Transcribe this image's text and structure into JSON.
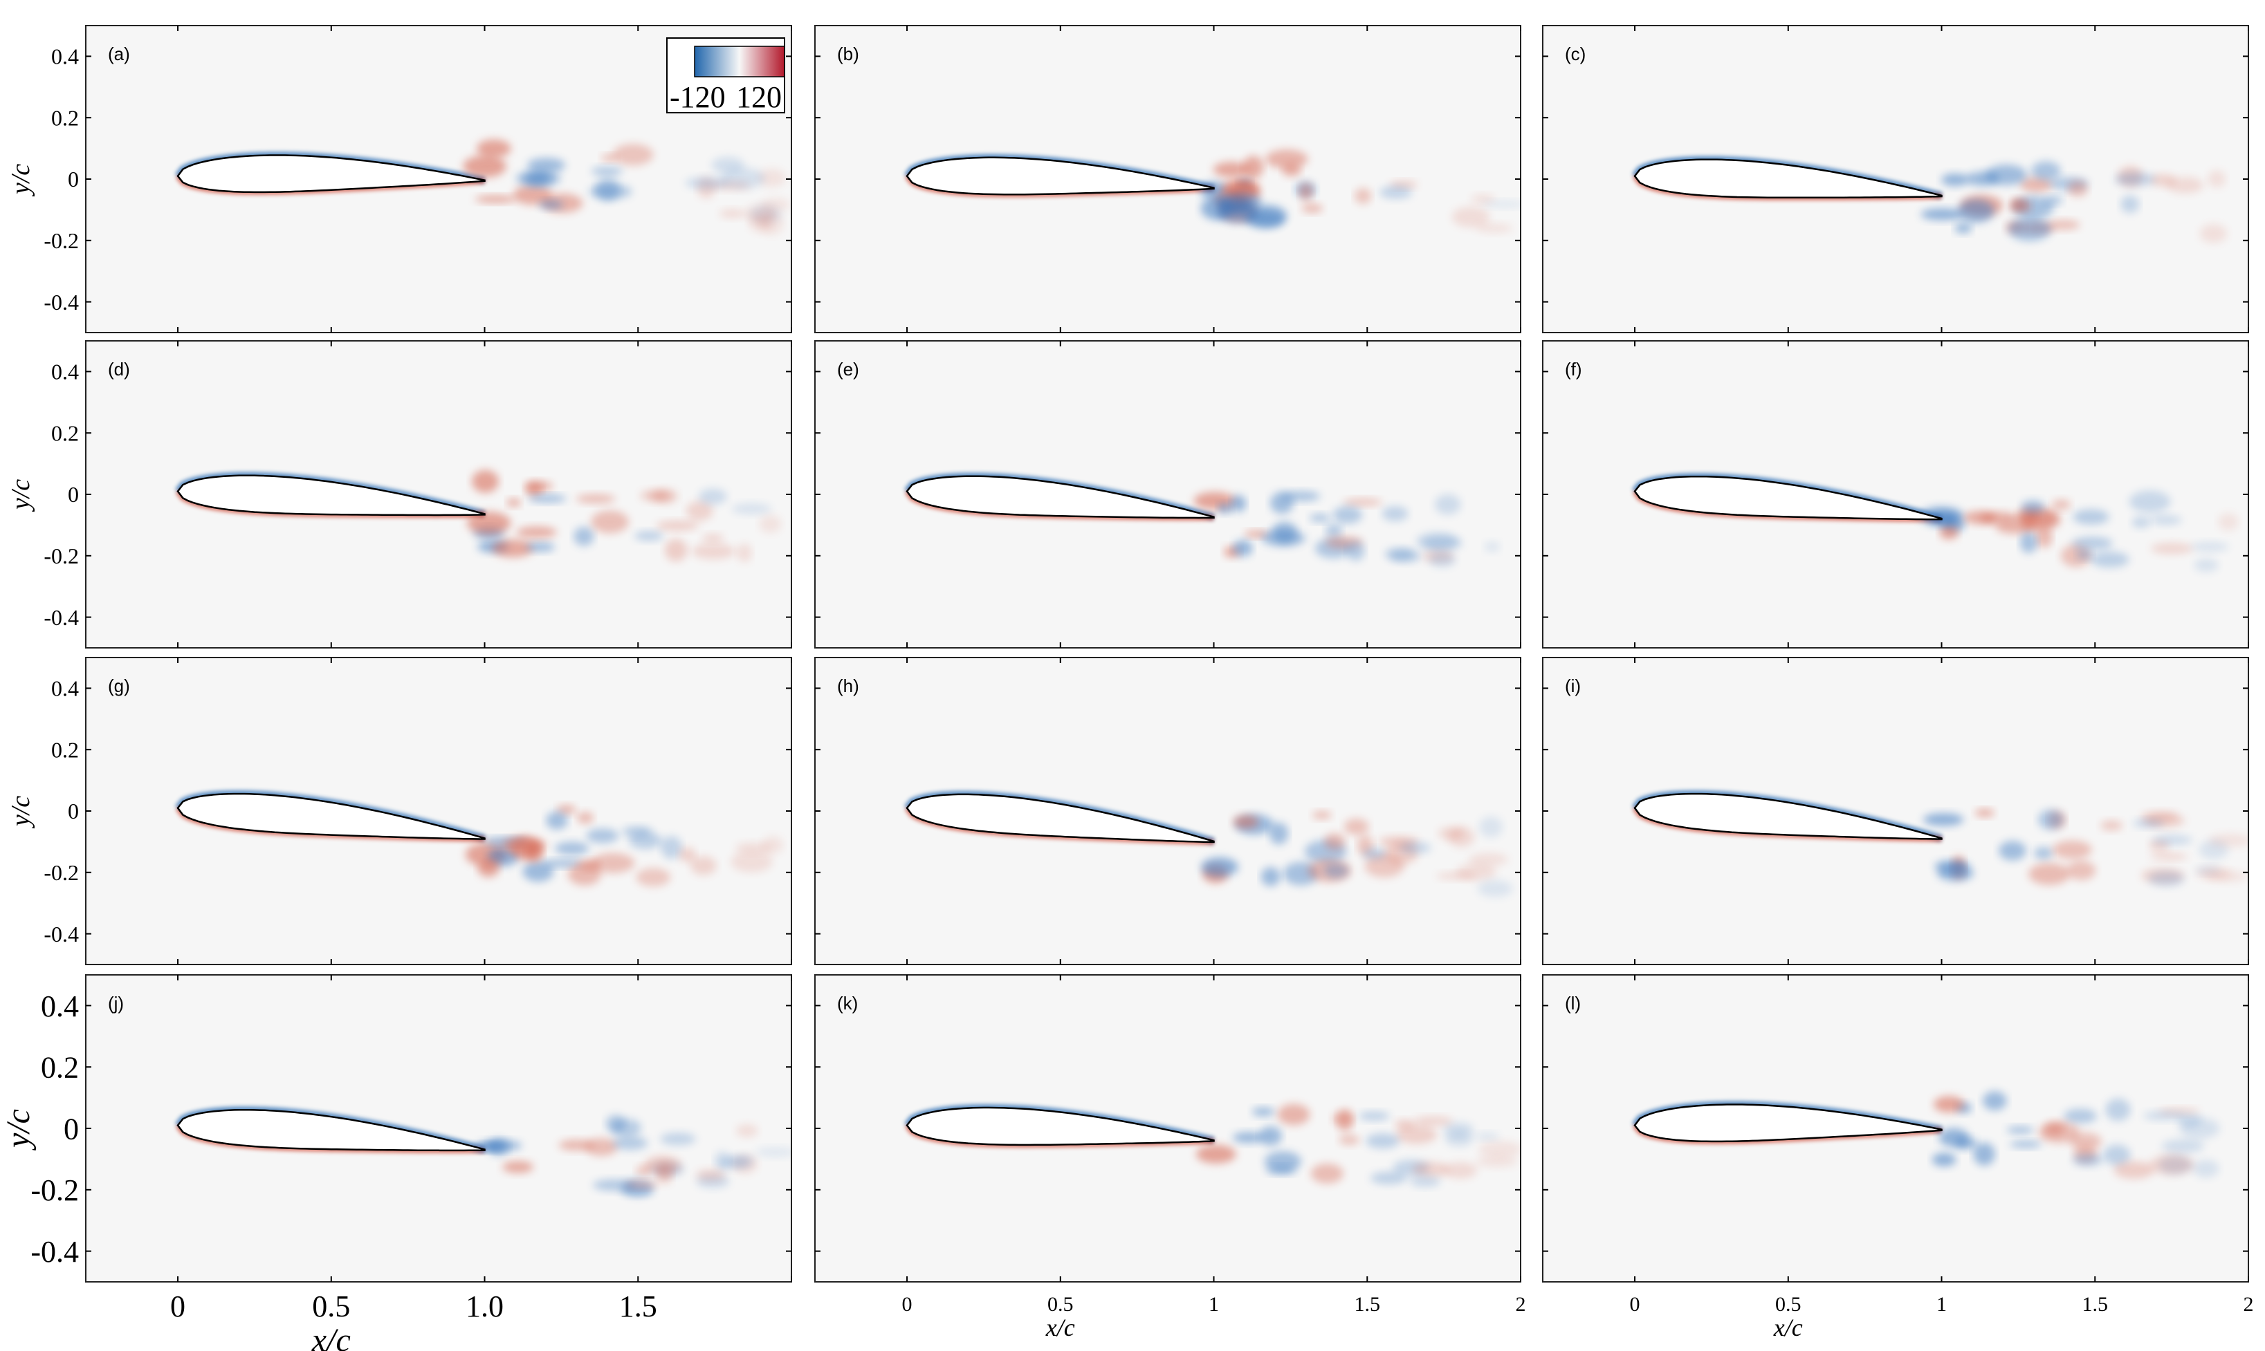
{
  "chart_data": {
    "type": "heatmap",
    "layout": "4x3 grid of panels",
    "field": "vorticity",
    "colorbar": {
      "min": -120,
      "max": 120,
      "min_label": "-120",
      "max_label": "120",
      "colors": [
        "#2166ac",
        "#f7f7f7",
        "#b2182b"
      ]
    },
    "xlim": [
      -0.3,
      2.0
    ],
    "ylim": [
      -0.5,
      0.5
    ],
    "x_ticks": [
      0,
      0.5,
      1,
      1.5,
      2
    ],
    "y_ticks": [
      0.4,
      0.2,
      0,
      -0.2,
      -0.4
    ],
    "xlabel": "x/c",
    "ylabel": "y/c",
    "background_color": "#f6f6f6",
    "panels": [
      {
        "tag": "(a)",
        "trailing_edge_y": -0.005
      },
      {
        "tag": "(b)",
        "trailing_edge_y": -0.03
      },
      {
        "tag": "(c)",
        "trailing_edge_y": -0.055
      },
      {
        "tag": "(d)",
        "trailing_edge_y": -0.065
      },
      {
        "tag": "(e)",
        "trailing_edge_y": -0.075
      },
      {
        "tag": "(f)",
        "trailing_edge_y": -0.08
      },
      {
        "tag": "(g)",
        "trailing_edge_y": -0.09
      },
      {
        "tag": "(h)",
        "trailing_edge_y": -0.1
      },
      {
        "tag": "(i)",
        "trailing_edge_y": -0.09
      },
      {
        "tag": "(j)",
        "trailing_edge_y": -0.07
      },
      {
        "tag": "(k)",
        "trailing_edge_y": -0.04
      },
      {
        "tag": "(l)",
        "trailing_edge_y": -0.005
      }
    ]
  },
  "labels": {
    "y_tick_text": [
      "0.4",
      "0.2",
      "0",
      "-0.2",
      "-0.4"
    ],
    "x_tick_text_left": [
      "0",
      "0.5",
      "1.0",
      "1.5"
    ],
    "x_tick_text_right": [
      "0",
      "0.5",
      "1",
      "1.5",
      "2"
    ]
  }
}
